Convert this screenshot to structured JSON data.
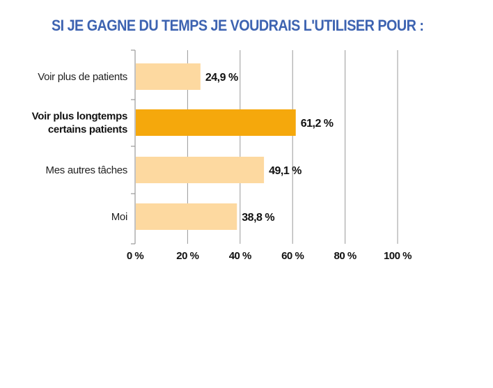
{
  "chart_data": {
    "type": "bar",
    "orientation": "horizontal",
    "title": "SI JE GAGNE DU TEMPS JE VOUDRAIS L'UTILISER POUR :",
    "categories": [
      [
        "Voir plus de patients"
      ],
      [
        "Voir plus longtemps",
        "certains patients"
      ],
      [
        "Mes autres tâches"
      ],
      [
        "Moi"
      ]
    ],
    "values": [
      24.9,
      61.2,
      49.1,
      38.8
    ],
    "value_labels": [
      "24,9 %",
      "61,2 %",
      "49,1 %",
      "38,8 %"
    ],
    "highlight_index": 1,
    "xlim": [
      0,
      100
    ],
    "x_ticks": [
      0,
      20,
      40,
      60,
      80,
      100
    ],
    "x_tick_labels": [
      "0 %",
      "20 %",
      "40 %",
      "60 %",
      "80 %",
      "100 %"
    ],
    "grid": "vertical",
    "colors": {
      "bar": "#fdd9a0",
      "bar_highlight": "#f5a80c",
      "gridline": "#999999",
      "title": "#3d63b1"
    }
  }
}
